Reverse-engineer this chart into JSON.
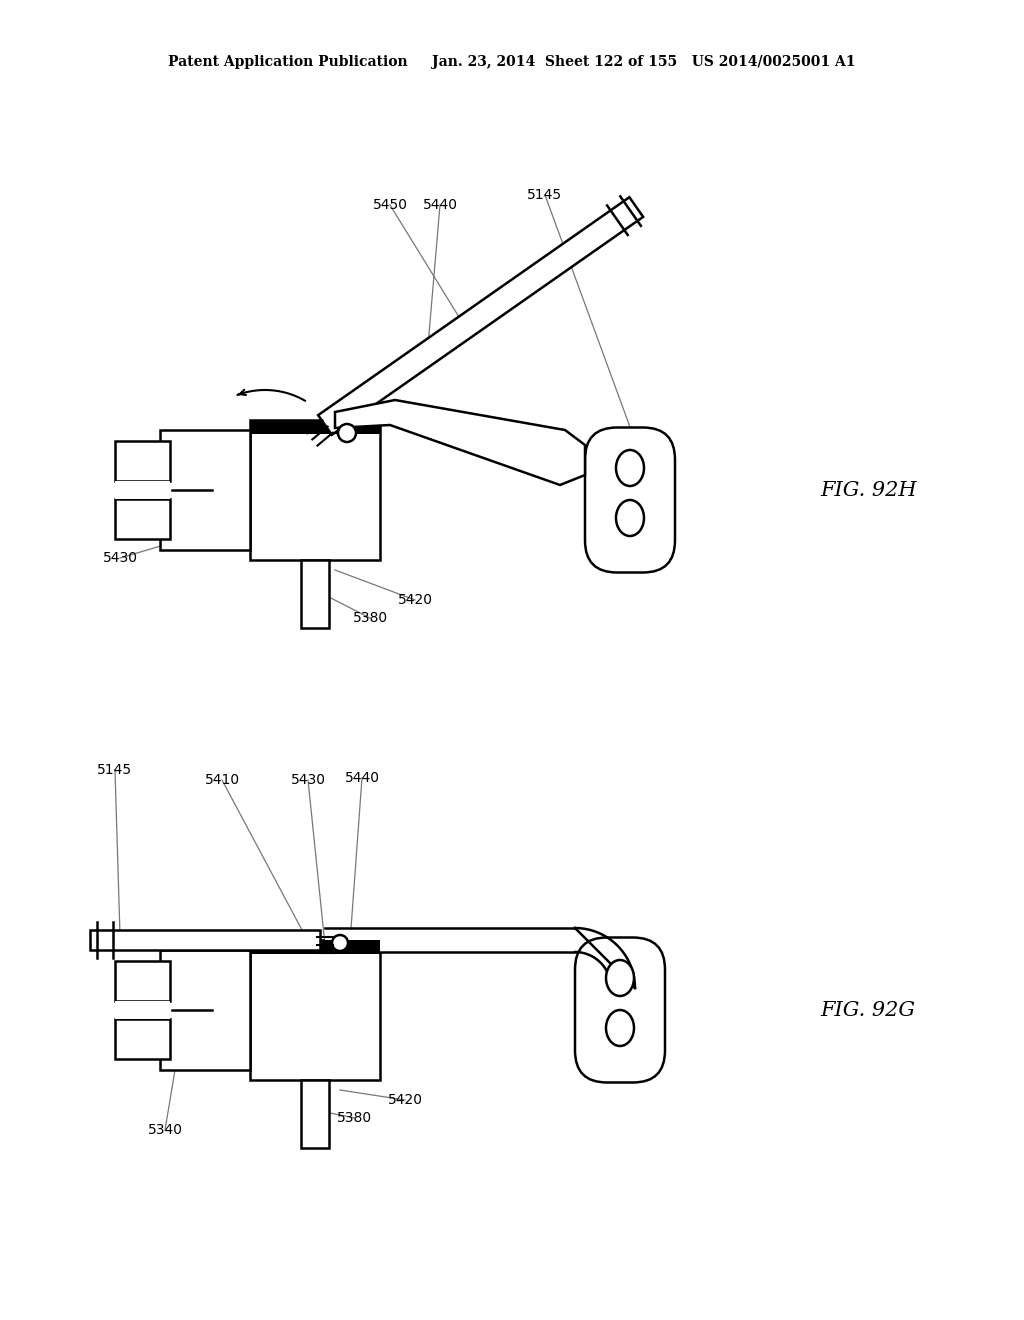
{
  "background_color": "#ffffff",
  "header_text": "Patent Application Publication     Jan. 23, 2014  Sheet 122 of 155   US 2014/0025001 A1",
  "fig_label_92H": "FIG. 92H",
  "fig_label_92G": "FIG. 92G",
  "line_color": "#000000",
  "line_width": 1.5,
  "label_fontsize": 10,
  "header_fontsize": 10,
  "fig_label_fontsize": 15
}
